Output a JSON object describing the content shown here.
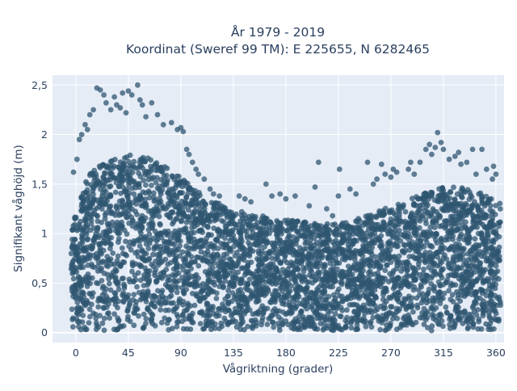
{
  "chart_data": {
    "type": "scatter",
    "title_line1": "År 1979 - 2019",
    "title_line2": "Koordinat (Sweref 99 TM): E 225655, N 6282465",
    "xlabel": "Vågriktning (grader)",
    "ylabel": "Signifikant våghöjd (m)",
    "xlim": [
      -20,
      367
    ],
    "ylim": [
      -0.1,
      2.6
    ],
    "x_ticks": [
      0,
      45,
      90,
      135,
      180,
      225,
      270,
      315,
      360
    ],
    "x_tick_labels": [
      "0",
      "45",
      "90",
      "135",
      "180",
      "225",
      "270",
      "315",
      "360"
    ],
    "y_ticks": [
      0,
      0.5,
      1,
      1.5,
      2,
      2.5
    ],
    "y_tick_labels": [
      "0",
      "0,5",
      "1",
      "1,5",
      "2",
      "2,5"
    ],
    "grid": true,
    "marker_color": "#2f5570",
    "background_color": "#e5ecf6",
    "envelope": {
      "direction": [
        0,
        10,
        20,
        30,
        45,
        60,
        75,
        90,
        100,
        110,
        120,
        135,
        150,
        165,
        180,
        195,
        210,
        225,
        240,
        255,
        270,
        285,
        300,
        315,
        330,
        345,
        360
      ],
      "dense_max_height": [
        1.2,
        1.55,
        1.7,
        1.75,
        1.78,
        1.75,
        1.68,
        1.55,
        1.45,
        1.35,
        1.3,
        1.22,
        1.18,
        1.15,
        1.12,
        1.1,
        1.08,
        1.08,
        1.12,
        1.2,
        1.25,
        1.32,
        1.4,
        1.45,
        1.45,
        1.42,
        1.3
      ]
    },
    "outliers": [
      {
        "x": 18,
        "y": 2.47
      },
      {
        "x": 21,
        "y": 2.45
      },
      {
        "x": 24,
        "y": 2.4
      },
      {
        "x": 26,
        "y": 2.32
      },
      {
        "x": 33,
        "y": 2.38
      },
      {
        "x": 35,
        "y": 2.3
      },
      {
        "x": 40,
        "y": 2.42
      },
      {
        "x": 45,
        "y": 2.44
      },
      {
        "x": 48,
        "y": 2.4
      },
      {
        "x": 53,
        "y": 2.5
      },
      {
        "x": 55,
        "y": 2.35
      },
      {
        "x": 57,
        "y": 2.3
      },
      {
        "x": 65,
        "y": 2.32
      },
      {
        "x": 30,
        "y": 2.25
      },
      {
        "x": 38,
        "y": 2.27
      },
      {
        "x": 15,
        "y": 2.25
      },
      {
        "x": 12,
        "y": 2.2
      },
      {
        "x": 60,
        "y": 2.18
      },
      {
        "x": 70,
        "y": 2.2
      },
      {
        "x": 43,
        "y": 2.22
      },
      {
        "x": 5,
        "y": 2.0
      },
      {
        "x": 8,
        "y": 2.1
      },
      {
        "x": 3,
        "y": 1.95
      },
      {
        "x": 10,
        "y": 2.05
      },
      {
        "x": 75,
        "y": 2.1
      },
      {
        "x": 82,
        "y": 2.12
      },
      {
        "x": 87,
        "y": 2.05
      },
      {
        "x": 90,
        "y": 2.07
      },
      {
        "x": 92,
        "y": 2.03
      },
      {
        "x": 95,
        "y": 1.85
      },
      {
        "x": 97,
        "y": 1.8
      },
      {
        "x": 100,
        "y": 1.72
      },
      {
        "x": 103,
        "y": 1.65
      },
      {
        "x": 105,
        "y": 1.6
      },
      {
        "x": 110,
        "y": 1.55
      },
      {
        "x": 115,
        "y": 1.45
      },
      {
        "x": 118,
        "y": 1.4
      },
      {
        "x": 123,
        "y": 1.38
      },
      {
        "x": 140,
        "y": 1.38
      },
      {
        "x": 145,
        "y": 1.35
      },
      {
        "x": 150,
        "y": 1.32
      },
      {
        "x": 163,
        "y": 1.5
      },
      {
        "x": 168,
        "y": 1.38
      },
      {
        "x": 175,
        "y": 1.4
      },
      {
        "x": 180,
        "y": 1.35
      },
      {
        "x": 188,
        "y": 1.38
      },
      {
        "x": 200,
        "y": 1.28
      },
      {
        "x": 205,
        "y": 1.47
      },
      {
        "x": 208,
        "y": 1.72
      },
      {
        "x": 215,
        "y": 1.25
      },
      {
        "x": 220,
        "y": 1.18
      },
      {
        "x": 225,
        "y": 1.38
      },
      {
        "x": 226,
        "y": 1.65
      },
      {
        "x": 235,
        "y": 1.45
      },
      {
        "x": 240,
        "y": 1.4
      },
      {
        "x": 250,
        "y": 1.72
      },
      {
        "x": 255,
        "y": 1.5
      },
      {
        "x": 258,
        "y": 1.55
      },
      {
        "x": 262,
        "y": 1.7
      },
      {
        "x": 265,
        "y": 1.6
      },
      {
        "x": 270,
        "y": 1.57
      },
      {
        "x": 272,
        "y": 1.65
      },
      {
        "x": 275,
        "y": 1.62
      },
      {
        "x": 285,
        "y": 1.65
      },
      {
        "x": 287,
        "y": 1.72
      },
      {
        "x": 290,
        "y": 1.6
      },
      {
        "x": 295,
        "y": 1.72
      },
      {
        "x": 300,
        "y": 1.85
      },
      {
        "x": 303,
        "y": 1.9
      },
      {
        "x": 305,
        "y": 1.8
      },
      {
        "x": 308,
        "y": 1.87
      },
      {
        "x": 310,
        "y": 2.02
      },
      {
        "x": 313,
        "y": 1.92
      },
      {
        "x": 315,
        "y": 1.85
      },
      {
        "x": 320,
        "y": 1.75
      },
      {
        "x": 325,
        "y": 1.78
      },
      {
        "x": 328,
        "y": 1.82
      },
      {
        "x": 330,
        "y": 1.7
      },
      {
        "x": 335,
        "y": 1.72
      },
      {
        "x": 340,
        "y": 1.85
      },
      {
        "x": 343,
        "y": 1.6
      },
      {
        "x": 348,
        "y": 1.85
      },
      {
        "x": 352,
        "y": 1.65
      },
      {
        "x": 358,
        "y": 1.68
      },
      {
        "x": 360,
        "y": 1.6
      },
      {
        "x": 357,
        "y": 1.55
      },
      {
        "x": -2,
        "y": 1.62
      },
      {
        "x": 1,
        "y": 1.75
      }
    ]
  }
}
